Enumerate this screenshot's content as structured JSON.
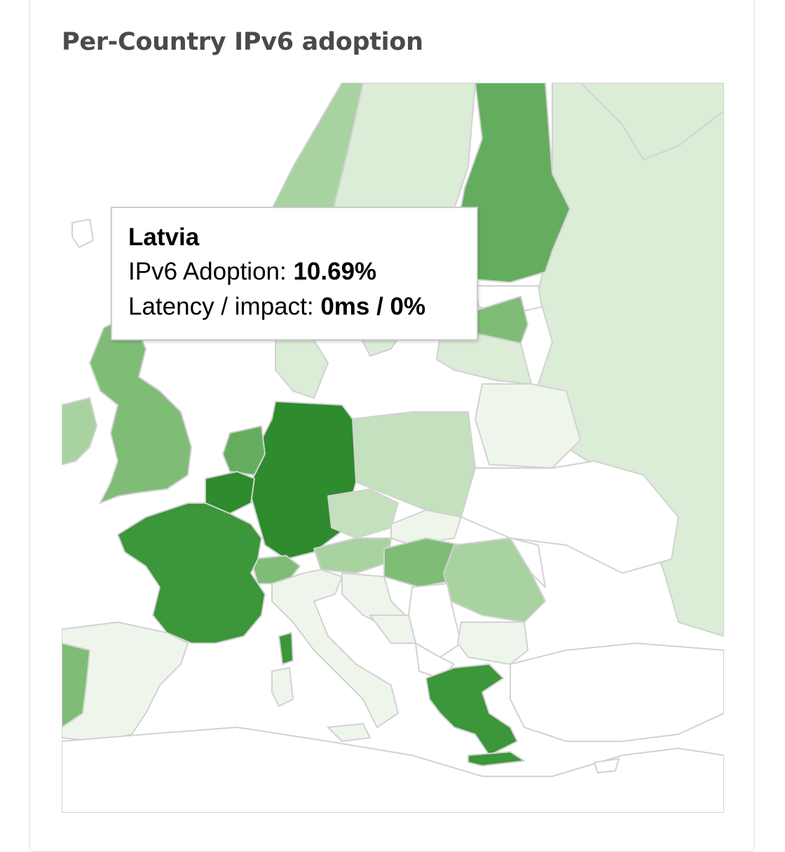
{
  "card": {
    "title": "Per-Country IPv6 adoption"
  },
  "map": {
    "region": "Europe",
    "colors": {
      "none": "#ffffff",
      "very_low": "#eef6ec",
      "low": "#dbecd7",
      "low_mid": "#c3e1bd",
      "mid": "#a8d3a0",
      "mid_high": "#7fbd77",
      "high": "#64ad5e",
      "very_high": "#3c963a",
      "max": "#2e8b2e",
      "border": "#d2d2d2"
    },
    "highlighted_countries": [
      "Germany",
      "France",
      "Belgium",
      "Greece",
      "Finland",
      "Netherlands",
      "Hungary",
      "United Kingdom",
      "Latvia",
      "Portugal",
      "Austria",
      "Switzerland",
      "Poland",
      "Romania",
      "Czechia",
      "Norway",
      "Sweden"
    ]
  },
  "tooltip": {
    "country": "Latvia",
    "adoption_label": "IPv6 Adoption:",
    "adoption_value": "10.69%",
    "latency_label": "Latency / impact:",
    "latency_value": "0ms / 0%"
  }
}
